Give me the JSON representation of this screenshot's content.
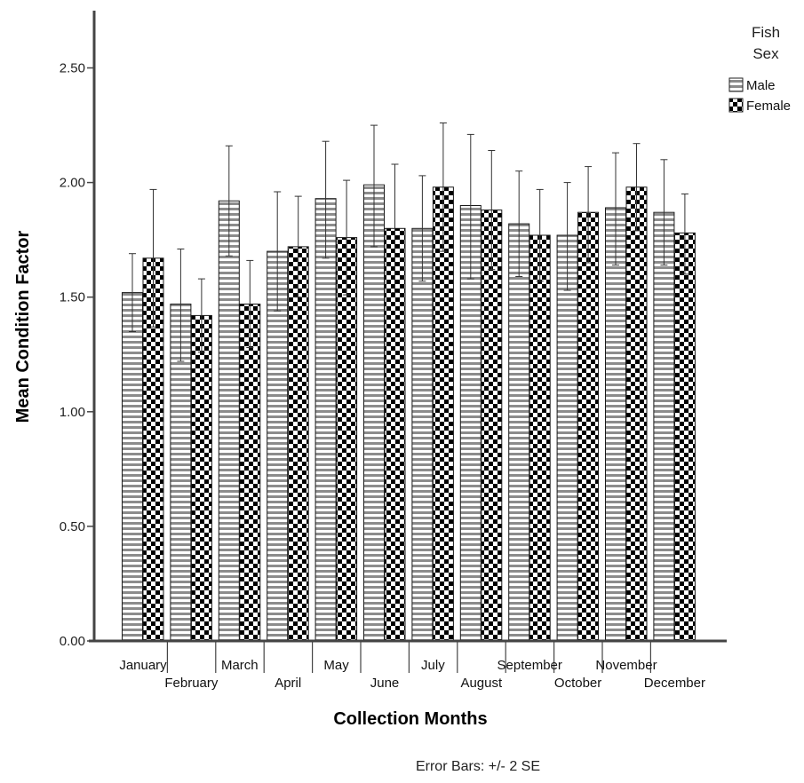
{
  "chart_data": {
    "type": "bar",
    "title": "",
    "xlabel": "Collection Months",
    "ylabel": "Mean Condition Factor",
    "ylim": [
      0,
      2.75
    ],
    "yticks": [
      "0.00",
      "0.50",
      "1.00",
      "1.50",
      "2.00",
      "2.50"
    ],
    "ytick_values": [
      0,
      0.5,
      1.0,
      1.5,
      2.0,
      2.5
    ],
    "grid": false,
    "legend": {
      "title_line1": "Fish",
      "title_line2": "Sex",
      "position": "top-right"
    },
    "footnote": "Error Bars: +/- 2 SE",
    "categories": [
      "January",
      "February",
      "March",
      "April",
      "May",
      "June",
      "July",
      "August",
      "September",
      "October",
      "November",
      "December"
    ],
    "series": [
      {
        "name": "Male",
        "pattern": "horizontal-stripes",
        "values": [
          1.52,
          1.47,
          1.92,
          1.7,
          1.93,
          1.99,
          1.8,
          1.9,
          1.82,
          1.77,
          1.89,
          1.87
        ],
        "error_low": [
          1.35,
          1.22,
          1.68,
          1.44,
          1.67,
          1.72,
          1.57,
          1.58,
          1.59,
          1.53,
          1.64,
          1.64
        ],
        "error_high": [
          1.69,
          1.71,
          2.16,
          1.96,
          2.18,
          2.25,
          2.03,
          2.21,
          2.05,
          2.0,
          2.13,
          2.1
        ]
      },
      {
        "name": "Female",
        "pattern": "checkerboard",
        "values": [
          1.67,
          1.42,
          1.47,
          1.72,
          1.76,
          1.8,
          1.98,
          1.88,
          1.77,
          1.87,
          1.98,
          1.78
        ],
        "error_low": [
          1.37,
          1.26,
          1.28,
          1.5,
          1.51,
          1.52,
          1.7,
          1.62,
          1.57,
          1.65,
          1.79,
          1.6
        ],
        "error_high": [
          1.97,
          1.58,
          1.66,
          1.94,
          2.01,
          2.08,
          2.26,
          2.14,
          1.97,
          2.07,
          2.17,
          1.95
        ]
      }
    ]
  }
}
